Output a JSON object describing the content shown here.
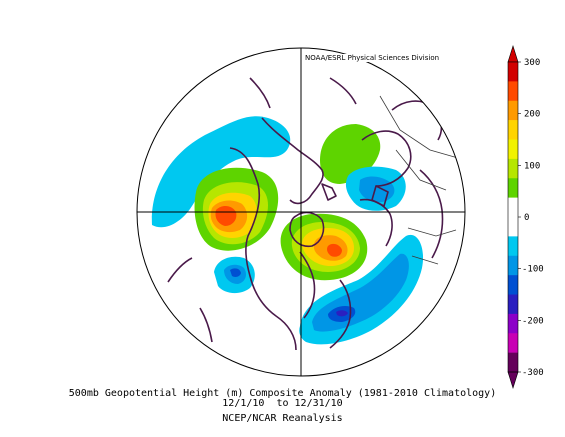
{
  "map": {
    "credit": "NOAA/ESRL Physical Sciences Division",
    "projection": "north polar stereographic",
    "field": "500mb geopotential height composite anomaly"
  },
  "caption": {
    "line1": "500mb Geopotential Height (m) Composite Anomaly (1981-2010 Climatology)",
    "line2": "12/1/10  to 12/31/10",
    "line3": "NCEP/NCAR Reanalysis"
  },
  "colorbar": {
    "labels": [
      "300",
      "200",
      "100",
      "0",
      "-100",
      "-200",
      "-300"
    ],
    "colors": [
      "#d20000",
      "#ff4a00",
      "#ff9a00",
      "#ffd400",
      "#f2f200",
      "#b6e600",
      "#5ed400",
      "#ffffff",
      "#ffffff",
      "#00c8f0",
      "#0096e6",
      "#0050d2",
      "#2b1fc0",
      "#8c00c8",
      "#c800b4",
      "#64005a"
    ]
  },
  "colors": {
    "coastline": "#4a1a4a",
    "frame": "#000000"
  }
}
